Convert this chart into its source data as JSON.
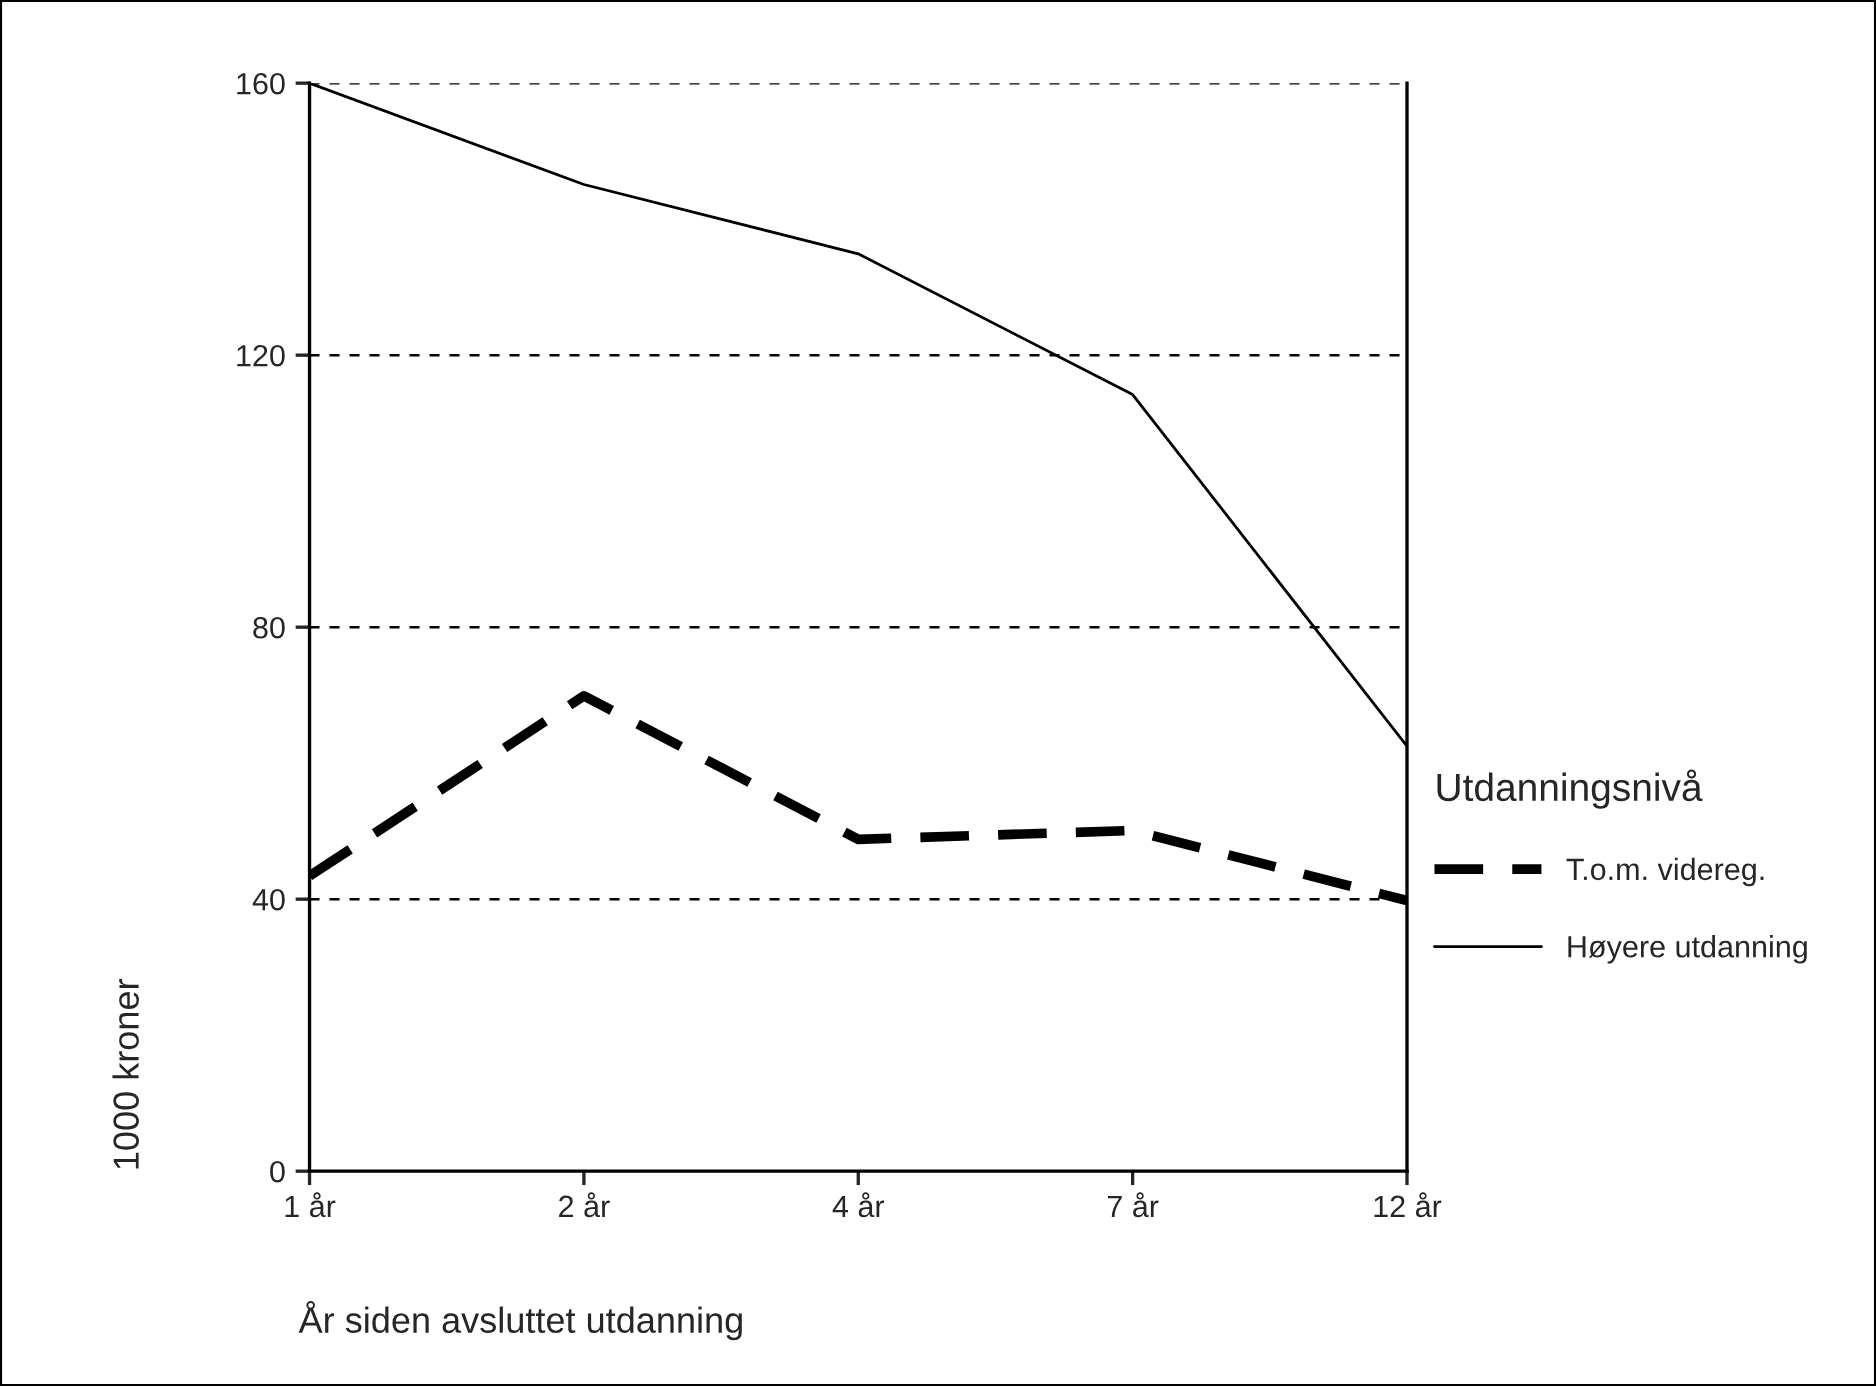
{
  "chart_data": {
    "type": "line",
    "xlabel": "År siden avsluttet utdanning",
    "ylabel": "1000 kroner",
    "legend_title": "Utdanningsnivå",
    "categories": [
      "1 år",
      "2 år",
      "4 år",
      "7 år",
      "12 år"
    ],
    "series": [
      {
        "name": "T.o.m. videreg.",
        "color": "#000000",
        "line_style": "dashed",
        "values": [
          43.4,
          69.9,
          48.8,
          50.1,
          39.8
        ]
      },
      {
        "name": "Høyere utdanning",
        "color": "#000000",
        "line_style": "solid",
        "values": [
          160,
          145.1,
          134.9,
          114.2,
          62.5
        ]
      }
    ],
    "ylim": [
      0,
      160
    ],
    "yticks": [
      0,
      40,
      80,
      120,
      160
    ],
    "grid": "y",
    "legend": "right",
    "marker": "none"
  }
}
